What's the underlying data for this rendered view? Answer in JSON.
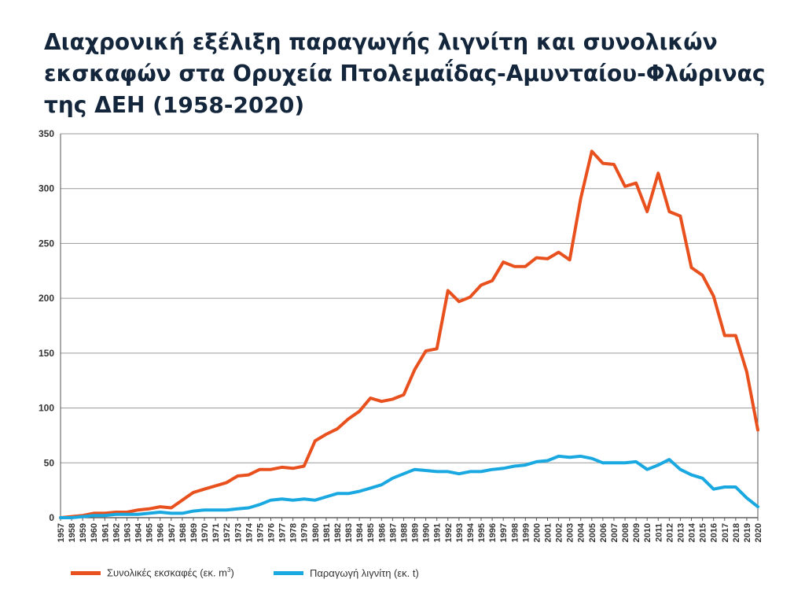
{
  "title": "Διαχρονική εξέλιξη παραγωγής λιγνίτη και συνολικών\nεκσκαφών στα Ορυχεία Πτολεμαΐδας-Αμυνταίου-Φλώρινας\nτης ΔΕΗ (1958-2020)",
  "legend": {
    "excavation": {
      "label": "Συνολικές εκσκαφές (εκ. m",
      "sup": "3",
      "suffix": ")"
    },
    "lignite": {
      "label": "Παραγωγή λιγνίτη (εκ. t)"
    }
  },
  "colors": {
    "excavation": "#e8501e",
    "lignite": "#1aa8e0",
    "grid": "#9a9a9a",
    "title": "#14263c"
  },
  "chart_data": {
    "type": "line",
    "title": "Διαχρονική εξέλιξη παραγωγής λιγνίτη και συνολικών εκσκαφών στα Ορυχεία Πτολεμαΐδας-Αμυνταίου-Φλώρινας της ΔΕΗ (1958-2020)",
    "xlabel": "",
    "ylabel": "",
    "ylim": [
      0,
      350
    ],
    "yticks": [
      0,
      50,
      100,
      150,
      200,
      250,
      300,
      350
    ],
    "grid": true,
    "legend_position": "bottom-left",
    "x": [
      1957,
      1958,
      1959,
      1960,
      1961,
      1962,
      1963,
      1964,
      1965,
      1966,
      1967,
      1968,
      1969,
      1970,
      1971,
      1972,
      1973,
      1974,
      1975,
      1976,
      1977,
      1978,
      1979,
      1980,
      1981,
      1982,
      1983,
      1984,
      1985,
      1986,
      1987,
      1988,
      1989,
      1990,
      1991,
      1992,
      1993,
      1994,
      1995,
      1996,
      1997,
      1998,
      1999,
      2000,
      2001,
      2002,
      2003,
      2004,
      2005,
      2006,
      2007,
      2008,
      2009,
      2010,
      2011,
      2012,
      2013,
      2014,
      2015,
      2016,
      2017,
      2018,
      2019,
      2020
    ],
    "series": [
      {
        "name": "Συνολικές εκσκαφές (εκ. m³)",
        "key": "excavation",
        "values": [
          0,
          1,
          2,
          4,
          4,
          5,
          5,
          7,
          8,
          10,
          9,
          16,
          23,
          26,
          29,
          32,
          38,
          39,
          44,
          44,
          46,
          45,
          47,
          70,
          76,
          81,
          90,
          97,
          109,
          106,
          108,
          112,
          135,
          152,
          154,
          207,
          197,
          201,
          212,
          216,
          233,
          229,
          229,
          237,
          236,
          242,
          235,
          291,
          334,
          323,
          322,
          302,
          305,
          279,
          314,
          279,
          275,
          228,
          221,
          202,
          166,
          166,
          133,
          80
        ]
      },
      {
        "name": "Παραγωγή λιγνίτη (εκ. t)",
        "key": "lignite",
        "values": [
          0,
          0,
          1,
          2,
          2,
          3,
          3,
          3,
          4,
          5,
          4,
          4,
          6,
          7,
          7,
          7,
          8,
          9,
          12,
          16,
          17,
          16,
          17,
          16,
          19,
          22,
          22,
          24,
          27,
          30,
          36,
          40,
          44,
          43,
          42,
          42,
          40,
          42,
          42,
          44,
          45,
          47,
          48,
          51,
          52,
          56,
          55,
          56,
          54,
          50,
          50,
          50,
          51,
          44,
          48,
          53,
          44,
          39,
          36,
          26,
          28,
          28,
          18,
          10
        ]
      }
    ]
  }
}
